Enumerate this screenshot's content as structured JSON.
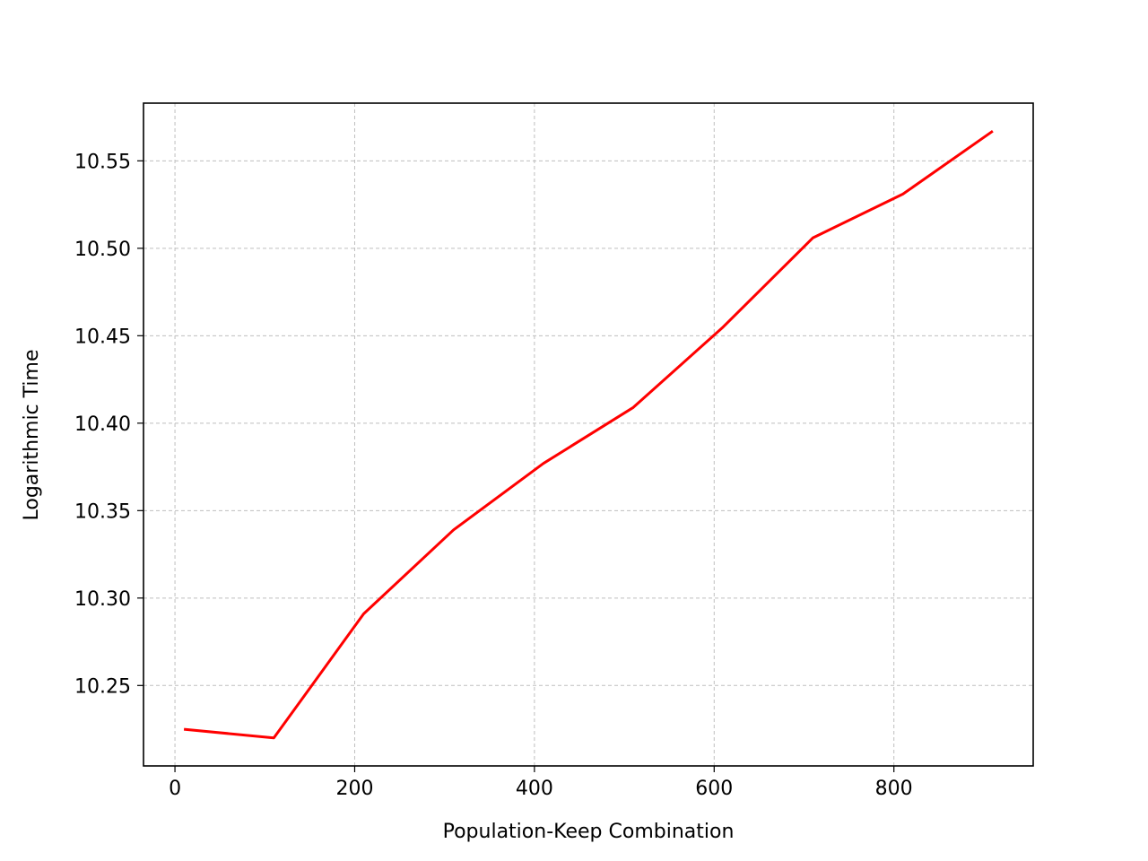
{
  "chart_data": {
    "type": "line",
    "title": "",
    "xlabel": "Population-Keep Combination",
    "ylabel": "Logarithmic Time",
    "xlim": [
      -35,
      955
    ],
    "ylim": [
      10.204,
      10.583
    ],
    "xticks": [
      0,
      200,
      400,
      600,
      800
    ],
    "xtick_labels": [
      "0",
      "200",
      "400",
      "600",
      "800"
    ],
    "yticks": [
      10.25,
      10.3,
      10.35,
      10.4,
      10.45,
      10.5,
      10.55
    ],
    "ytick_labels": [
      "10.25",
      "10.30",
      "10.35",
      "10.40",
      "10.45",
      "10.50",
      "10.55"
    ],
    "grid": true,
    "legend": "none",
    "series": [
      {
        "color": "#ff0000",
        "x": [
          10,
          110,
          210,
          310,
          410,
          510,
          610,
          710,
          810,
          910
        ],
        "y": [
          10.225,
          10.22,
          10.291,
          10.339,
          10.377,
          10.409,
          10.455,
          10.506,
          10.531,
          10.567
        ]
      }
    ]
  }
}
